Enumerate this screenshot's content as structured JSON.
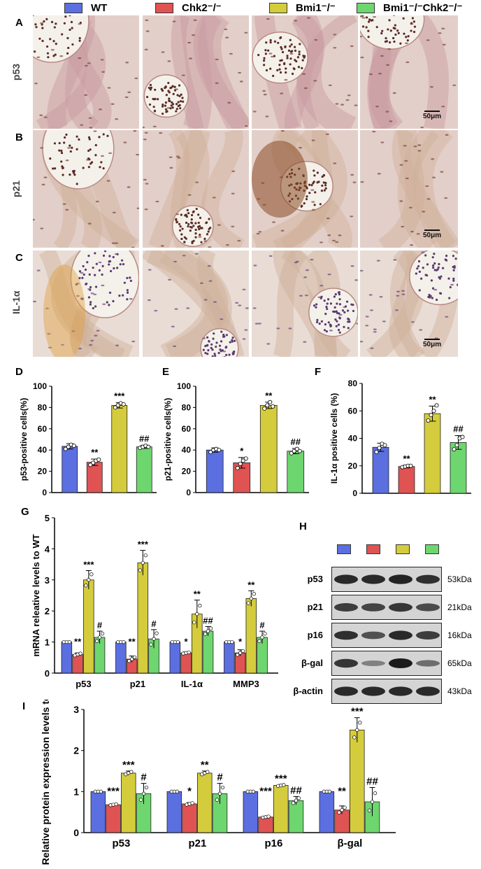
{
  "legend": [
    {
      "label": "WT",
      "color": "#5b6fe0"
    },
    {
      "label": "Chk2⁻/⁻",
      "color": "#e05353"
    },
    {
      "label": "Bmi1⁻/⁻",
      "color": "#d4cc3c"
    },
    {
      "label": "Bmi1⁻/⁻Chk2⁻/⁻",
      "color": "#6ed66e"
    }
  ],
  "micrographs": {
    "panels": [
      {
        "letter": "A",
        "row_label": "p53",
        "scale": "50μm"
      },
      {
        "letter": "B",
        "row_label": "p21",
        "scale": "50μm"
      },
      {
        "letter": "C",
        "row_label": "IL-1α",
        "scale": "50μm"
      }
    ]
  },
  "chart_data": [
    {
      "id": "D",
      "type": "bar",
      "categories": [
        "WT",
        "Chk2⁻/⁻",
        "Bmi1⁻/⁻",
        "Bmi1⁻/⁻Chk2⁻/⁻"
      ],
      "values": [
        43.5,
        28.5,
        82,
        43
      ],
      "errors": [
        2.5,
        3,
        2.5,
        1.5
      ],
      "points": [
        [
          41,
          43,
          45,
          44
        ],
        [
          26,
          28,
          30,
          31
        ],
        [
          80,
          82,
          84,
          83
        ],
        [
          42,
          43,
          44,
          43
        ]
      ],
      "annotations": [
        "",
        "**",
        "***",
        "##"
      ],
      "ylabel": "p53-positive cells(%)",
      "ylim": [
        0,
        100
      ],
      "yticks": [
        0,
        20,
        40,
        60,
        80,
        100
      ]
    },
    {
      "id": "E",
      "type": "bar",
      "categories": [
        "WT",
        "Chk2⁻/⁻",
        "Bmi1⁻/⁻",
        "Bmi1⁻/⁻Chk2⁻/⁻"
      ],
      "values": [
        40,
        28,
        82,
        39
      ],
      "errors": [
        2,
        5,
        3,
        2.5
      ],
      "points": [
        [
          38,
          40,
          41,
          40
        ],
        [
          23,
          27,
          30,
          32
        ],
        [
          79,
          82,
          85,
          81
        ],
        [
          37,
          39,
          41,
          39
        ]
      ],
      "annotations": [
        "",
        "*",
        "**",
        "##"
      ],
      "ylabel": "p21-positive cells(%)",
      "ylim": [
        0,
        100
      ],
      "yticks": [
        0,
        20,
        40,
        60,
        80,
        100
      ]
    },
    {
      "id": "F",
      "type": "bar",
      "categories": [
        "WT",
        "Chk2⁻/⁻",
        "Bmi1⁻/⁻",
        "Bmi1⁻/⁻Chk2⁻/⁻"
      ],
      "values": [
        33.5,
        19.5,
        58,
        37
      ],
      "errors": [
        3,
        1,
        5.5,
        5
      ],
      "points": [
        [
          30,
          33,
          36,
          35
        ],
        [
          19,
          19.5,
          20,
          20
        ],
        [
          53,
          57,
          60,
          64
        ],
        [
          32,
          35,
          40,
          41
        ]
      ],
      "annotations": [
        "",
        "**",
        "**",
        "##"
      ],
      "ylabel": "IL-1α positive cells (%)",
      "ylim": [
        0,
        80
      ],
      "yticks": [
        0,
        20,
        40,
        60,
        80
      ]
    },
    {
      "id": "G",
      "type": "bar",
      "groups": [
        "p53",
        "p21",
        "IL-1α",
        "MMP3"
      ],
      "series": [
        {
          "name": "WT",
          "values": [
            1,
            1,
            1,
            1
          ],
          "errors": [
            0,
            0,
            0,
            0
          ],
          "annotations": [
            "",
            "",
            "",
            ""
          ]
        },
        {
          "name": "Chk2⁻/⁻",
          "values": [
            0.6,
            0.45,
            0.65,
            0.65
          ],
          "errors": [
            0.05,
            0.1,
            0.03,
            0.1
          ],
          "annotations": [
            "**",
            "**",
            "*",
            "*"
          ]
        },
        {
          "name": "Bmi1⁻/⁻",
          "values": [
            3.0,
            3.55,
            1.9,
            2.4
          ],
          "errors": [
            0.3,
            0.4,
            0.45,
            0.25
          ],
          "annotations": [
            "***",
            "***",
            "**",
            "**"
          ]
        },
        {
          "name": "Bmi1⁻/⁻Chk2⁻/⁻",
          "values": [
            1.15,
            1.1,
            1.35,
            1.15
          ],
          "errors": [
            0.2,
            0.3,
            0.15,
            0.2
          ],
          "annotations": [
            "#",
            "#",
            "##",
            "#"
          ]
        }
      ],
      "ylabel": "mRNA releative levels to WT",
      "ylim": [
        0,
        5
      ],
      "yticks": [
        0,
        1,
        2,
        3,
        4,
        5
      ]
    },
    {
      "id": "I",
      "type": "bar",
      "groups": [
        "p53",
        "p21",
        "p16",
        "β-gal"
      ],
      "series": [
        {
          "name": "WT",
          "values": [
            1,
            1,
            1,
            1
          ],
          "errors": [
            0,
            0,
            0,
            0
          ],
          "annotations": [
            "",
            "",
            "",
            ""
          ]
        },
        {
          "name": "Chk2⁻/⁻",
          "values": [
            0.68,
            0.7,
            0.38,
            0.55
          ],
          "errors": [
            0.02,
            0.03,
            0.02,
            0.1
          ],
          "annotations": [
            "***",
            "*",
            "***",
            "**"
          ]
        },
        {
          "name": "Bmi1⁻/⁻",
          "values": [
            1.45,
            1.45,
            1.15,
            2.5
          ],
          "errors": [
            0.05,
            0.05,
            0.02,
            0.3
          ],
          "annotations": [
            "***",
            "**",
            "***",
            "***"
          ]
        },
        {
          "name": "Bmi1⁻/⁻Chk2⁻/⁻",
          "values": [
            0.95,
            0.95,
            0.78,
            0.75
          ],
          "errors": [
            0.25,
            0.25,
            0.1,
            0.35
          ],
          "annotations": [
            "#",
            "#",
            "##",
            "##"
          ]
        }
      ],
      "ylabel": "Relative protein expression levels to WT",
      "ylim": [
        0,
        3
      ],
      "yticks": [
        0,
        1,
        2,
        3
      ]
    }
  ],
  "western_blot": {
    "letter": "H",
    "rows": [
      {
        "label": "p53",
        "kda": "53kDa",
        "intensity": [
          0.9,
          0.9,
          0.95,
          0.85
        ]
      },
      {
        "label": "p21",
        "kda": "21kDa",
        "intensity": [
          0.75,
          0.7,
          0.8,
          0.65
        ]
      },
      {
        "label": "p16",
        "kda": "16kDa",
        "intensity": [
          0.85,
          0.6,
          0.9,
          0.75
        ]
      },
      {
        "label": "β-gal",
        "kda": "65kDa",
        "intensity": [
          0.8,
          0.25,
          1.0,
          0.4
        ]
      },
      {
        "label": "β-actin",
        "kda": "43kDa",
        "intensity": [
          0.9,
          0.9,
          0.9,
          0.9
        ]
      }
    ]
  }
}
